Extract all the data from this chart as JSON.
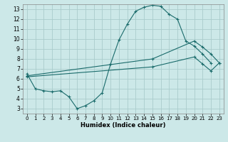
{
  "bg_color": "#cce8e8",
  "grid_color": "#aacccc",
  "line_color": "#1a6b6b",
  "marker_color": "#1a6b6b",
  "xlabel": "Humidex (Indice chaleur)",
  "xlim": [
    -0.5,
    23.5
  ],
  "ylim": [
    2.5,
    13.5
  ],
  "xticks": [
    0,
    1,
    2,
    3,
    4,
    5,
    6,
    7,
    8,
    9,
    10,
    11,
    12,
    13,
    14,
    15,
    16,
    17,
    18,
    19,
    20,
    21,
    22,
    23
  ],
  "yticks": [
    3,
    4,
    5,
    6,
    7,
    8,
    9,
    10,
    11,
    12,
    13
  ],
  "curve1_x": [
    0,
    1,
    2,
    3,
    4,
    5,
    6,
    7,
    8,
    9,
    10,
    11,
    12,
    13,
    14,
    15,
    16,
    17,
    18,
    19,
    20,
    21,
    22
  ],
  "curve1_y": [
    6.5,
    5.0,
    4.8,
    4.7,
    4.8,
    4.2,
    3.0,
    3.3,
    3.8,
    4.6,
    7.5,
    9.9,
    11.5,
    12.8,
    13.2,
    13.4,
    13.3,
    12.5,
    12.0,
    9.8,
    9.3,
    8.5,
    7.6
  ],
  "curve2_x": [
    0,
    15,
    20,
    21,
    22,
    23
  ],
  "curve2_y": [
    6.3,
    8.0,
    9.8,
    9.2,
    8.5,
    7.6
  ],
  "curve3_x": [
    0,
    15,
    20,
    21,
    22,
    23
  ],
  "curve3_y": [
    6.2,
    7.2,
    8.2,
    7.5,
    6.8,
    7.6
  ]
}
